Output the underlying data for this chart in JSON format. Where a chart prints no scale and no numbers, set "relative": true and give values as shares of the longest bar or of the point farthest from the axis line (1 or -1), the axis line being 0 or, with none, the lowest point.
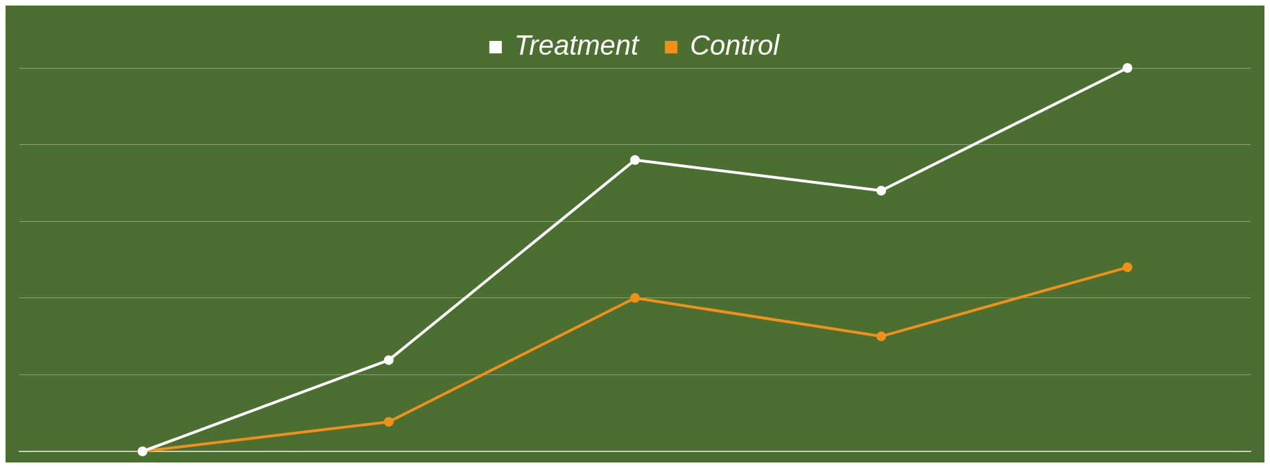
{
  "chart_data": {
    "type": "line",
    "relative": true,
    "categories": [
      null,
      null,
      null,
      null,
      null
    ],
    "series": [
      {
        "name": "Treatment",
        "color": "#ffffff",
        "values": [
          0,
          0.238,
          0.76,
          0.68,
          1.0
        ]
      },
      {
        "name": "Control",
        "color": "#f0901a",
        "values": [
          0,
          0.077,
          0.4,
          0.3,
          0.48
        ]
      }
    ],
    "grid": "y",
    "legend": "top",
    "marker": "circle",
    "line_style": "solid"
  }
}
